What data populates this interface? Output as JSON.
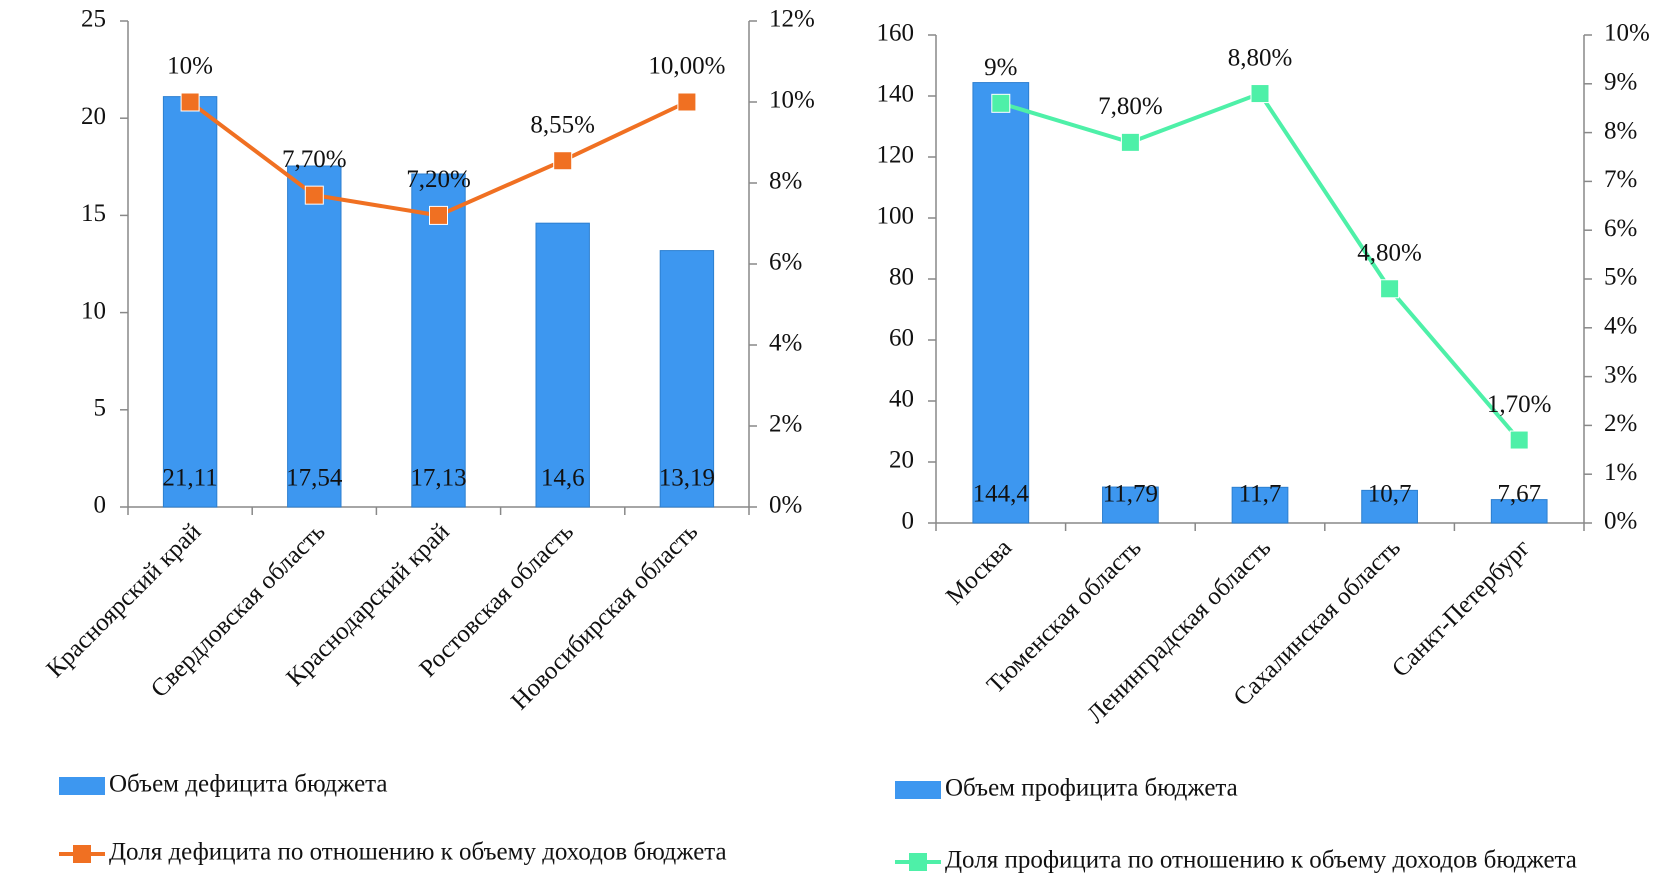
{
  "chart_data": [
    {
      "type": "combo",
      "categories": [
        "Красноярский край",
        "Свердловская область",
        "Краснодарский край",
        "Ростовская область",
        "Новосибирская область"
      ],
      "series": [
        {
          "name": "Объем дефицита бюджета",
          "type": "bar",
          "color": "#3d97f0",
          "values": [
            21.11,
            17.54,
            17.13,
            14.6,
            13.19
          ],
          "value_labels": [
            "21,11",
            "17,54",
            "17,13",
            "14,6",
            "13,19"
          ]
        },
        {
          "name": "Доля дефицита по отношению к объему доходов бюджета",
          "type": "line",
          "axis": "y2",
          "color": "#f07022",
          "values": [
            10,
            7.7,
            7.2,
            8.55,
            10
          ],
          "value_labels": [
            "10%",
            "7,70%",
            "7,20%",
            "8,55%",
            "10,00%"
          ]
        }
      ],
      "ylim": [
        0,
        25
      ],
      "yticks": [
        0,
        5,
        10,
        15,
        20,
        25
      ],
      "y2lim": [
        0,
        12
      ],
      "y2ticks": [
        {
          "value": 0,
          "label": "0%"
        },
        {
          "value": 2,
          "label": "2%"
        },
        {
          "value": 4,
          "label": "4%"
        },
        {
          "value": 6,
          "label": "6%"
        },
        {
          "value": 8,
          "label": "8%"
        },
        {
          "value": 10,
          "label": "10%"
        },
        {
          "value": 12,
          "label": "12%"
        }
      ]
    },
    {
      "type": "combo",
      "categories": [
        "Москва",
        "Тюменская область",
        "Ленинградская область",
        "Сахалинская область",
        "Санкт-Петербург"
      ],
      "series": [
        {
          "name": "Объем профицита бюджета",
          "type": "bar",
          "color": "#3d97f0",
          "values": [
            144.4,
            11.79,
            11.7,
            10.7,
            7.67
          ],
          "value_labels": [
            "144,4",
            "11,79",
            "11,7",
            "10,7",
            "7,67"
          ]
        },
        {
          "name": "Доля профицита по отношению к объему доходов бюджета",
          "type": "line",
          "axis": "y2",
          "color": "#4ef0a8",
          "values": [
            8.6,
            7.8,
            8.8,
            4.8,
            1.7
          ],
          "value_labels": [
            "9%",
            "7,80%",
            "8,80%",
            "4,80%",
            "1,70%"
          ]
        }
      ],
      "ylim": [
        0,
        160
      ],
      "yticks": [
        0,
        20,
        40,
        60,
        80,
        100,
        120,
        140,
        160
      ],
      "y2lim": [
        0,
        10
      ],
      "y2ticks": [
        {
          "value": 0,
          "label": "0%"
        },
        {
          "value": 1,
          "label": "1%"
        },
        {
          "value": 2,
          "label": "2%"
        },
        {
          "value": 3,
          "label": "3%"
        },
        {
          "value": 4,
          "label": "4%"
        },
        {
          "value": 5,
          "label": "5%"
        },
        {
          "value": 6,
          "label": "6%"
        },
        {
          "value": 7,
          "label": "7%"
        },
        {
          "value": 8,
          "label": "8%"
        },
        {
          "value": 9,
          "label": "9%"
        },
        {
          "value": 10,
          "label": "10%"
        }
      ]
    }
  ]
}
